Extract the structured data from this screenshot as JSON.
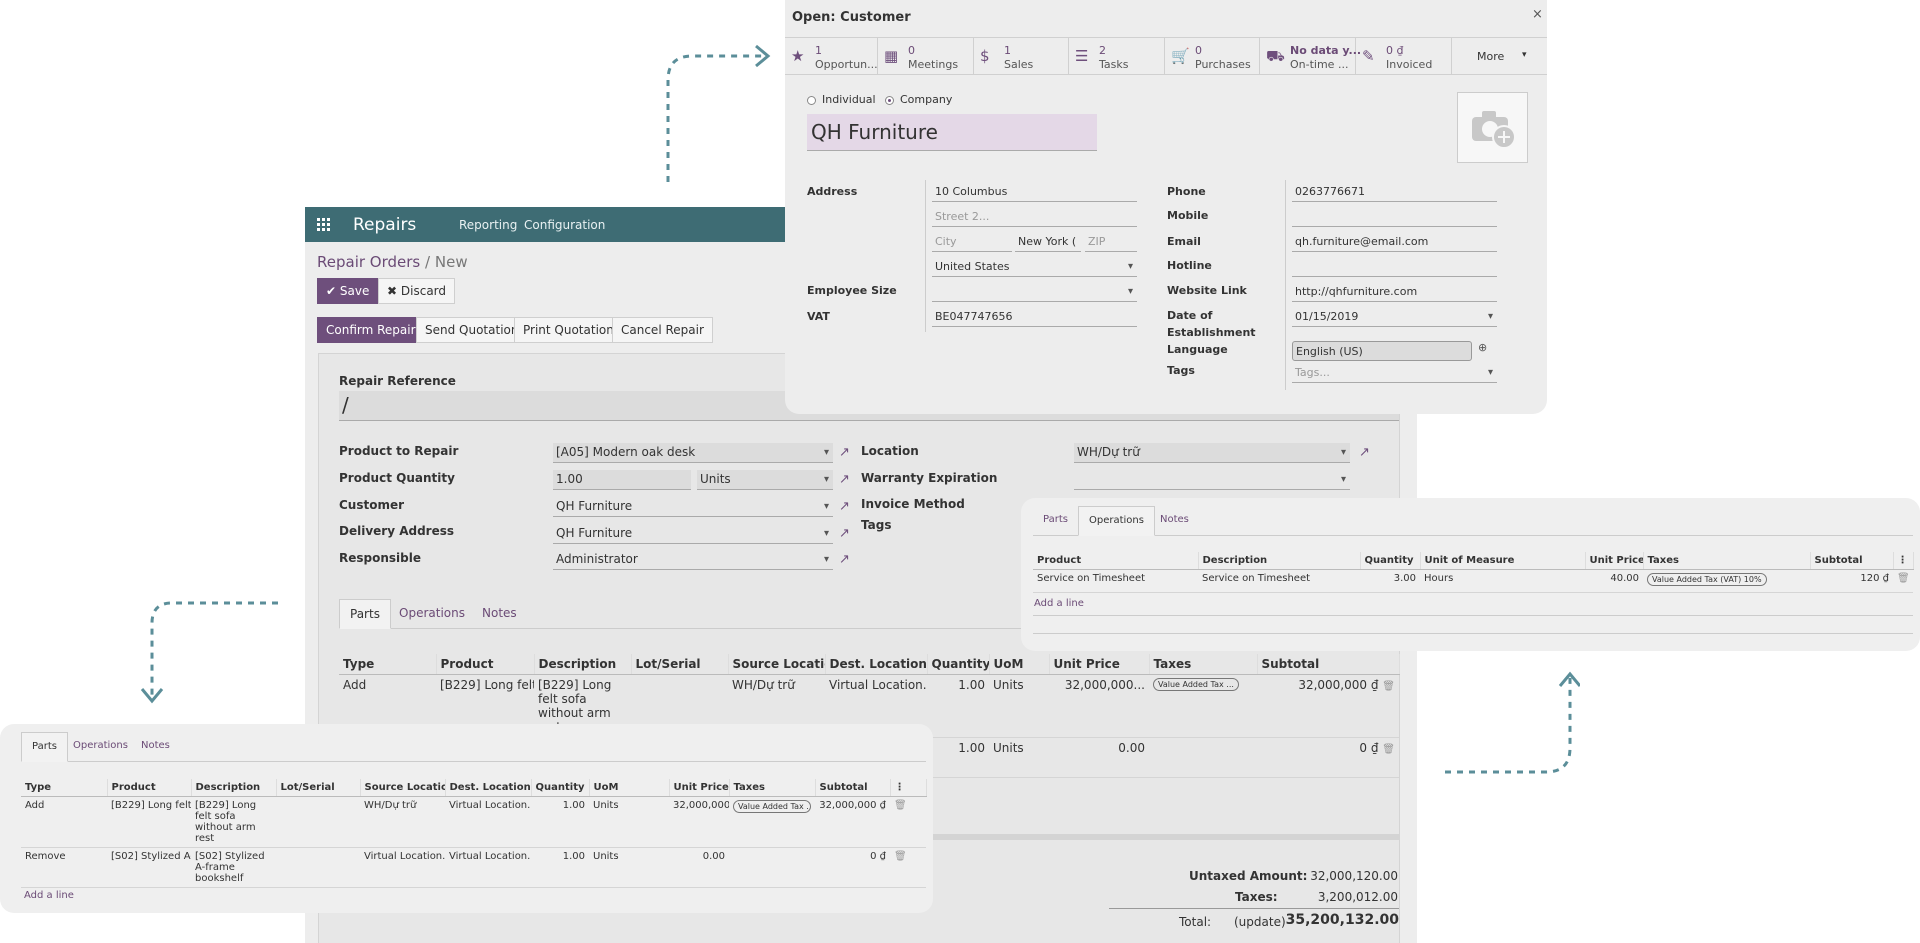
{
  "app": {
    "name": "Repairs",
    "menu": [
      "Reporting",
      "Configuration"
    ]
  },
  "breadcrumb": {
    "parent": "Repair Orders",
    "separator": "/",
    "current": "New"
  },
  "toolbar": {
    "save": "Save",
    "discard": "Discard"
  },
  "actions": [
    "Confirm Repair",
    "Send Quotation",
    "Print Quotation",
    "Cancel Repair"
  ],
  "form": {
    "reference_label": "Repair Reference",
    "reference_value": "/",
    "product_to_repair": {
      "label": "Product to Repair",
      "value": "[A05] Modern oak desk"
    },
    "product_quantity": {
      "label": "Product Quantity",
      "value": "1.00",
      "uom": "Units"
    },
    "customer": {
      "label": "Customer",
      "value": "QH Furniture"
    },
    "delivery_address": {
      "label": "Delivery Address",
      "value": "QH Furniture"
    },
    "responsible": {
      "label": "Responsible",
      "value": "Administrator"
    },
    "location": {
      "label": "Location",
      "value": "WH/Dự trữ"
    },
    "warranty": {
      "label": "Warranty Expiration",
      "value": ""
    },
    "invoice_method": {
      "label": "Invoice Method"
    },
    "tags": {
      "label": "Tags"
    }
  },
  "tabs": [
    "Parts",
    "Operations",
    "Notes"
  ],
  "parts_table": {
    "headers": [
      "Type",
      "Product",
      "Description",
      "Lot/Serial",
      "Source Locatio...",
      "Dest. Location",
      "Quantity",
      "UoM",
      "Unit Price",
      "Taxes",
      "Subtotal"
    ],
    "rows": [
      {
        "type": "Add",
        "product": "[B229] Long felt...",
        "description": "[B229] Long felt sofa without arm rest",
        "lot": "",
        "source": "WH/Dự trữ",
        "dest": "Virtual Location...",
        "qty": "1.00",
        "uom": "Units",
        "price": "32,000,000...",
        "tax": "Value Added Tax ...",
        "subtotal": "32,000,000 ₫"
      },
      {
        "type": "Remove",
        "product": "[S02] Stylized A-...",
        "description": "[S02] Stylized A-frame bookshelf",
        "lot": "",
        "source": "Virtual Location...",
        "dest": "Virtual Location...",
        "qty": "1.00",
        "uom": "Units",
        "price": "0.00",
        "tax": "",
        "subtotal": "0 ₫"
      }
    ],
    "add_line": "Add a line"
  },
  "totals": {
    "untaxed_label": "Untaxed Amount:",
    "untaxed": "32,000,120.00",
    "taxes_label": "Taxes:",
    "taxes": "3,200,012.00",
    "total_label": "Total:",
    "update": "(update)",
    "total": "35,200,132.00"
  },
  "customer_dialog": {
    "title": "Open: Customer",
    "stats": [
      {
        "icon": "star-icon",
        "value": "1",
        "text": "Opportun..."
      },
      {
        "icon": "calendar-icon",
        "value": "0",
        "text": "Meetings"
      },
      {
        "icon": "dollar-icon",
        "value": "1",
        "text": "Sales"
      },
      {
        "icon": "tasks-icon",
        "value": "2",
        "text": "Tasks"
      },
      {
        "icon": "cart-icon",
        "value": "0",
        "text": "Purchases"
      },
      {
        "icon": "truck-icon",
        "value": "No data y...",
        "text": "On-time ..."
      },
      {
        "icon": "invoice-icon",
        "value": "0 ₫",
        "text": "Invoiced"
      }
    ],
    "more": "More",
    "type_individual": "Individual",
    "type_company": "Company",
    "name": "QH Furniture",
    "address_label": "Address",
    "street": "10 Columbus",
    "street2_placeholder": "Street 2...",
    "city_placeholder": "City",
    "state": "New York (",
    "zip_placeholder": "ZIP",
    "country": "United States",
    "employee_size_label": "Employee Size",
    "vat_label": "VAT",
    "vat": "BE047747656",
    "phone_label": "Phone",
    "phone": "0263776671",
    "mobile_label": "Mobile",
    "email_label": "Email",
    "email": "qh.furniture@email.com",
    "hotline_label": "Hotline",
    "website_label": "Website Link",
    "website": "http://qhfurniture.com",
    "date_label_1": "Date of",
    "date_label_2": "Establishment",
    "date": "01/15/2019",
    "language_label": "Language",
    "language": "English (US)",
    "tags_label": "Tags",
    "tags_placeholder": "Tags..."
  },
  "operations_panel": {
    "tabs": [
      "Parts",
      "Operations",
      "Notes"
    ],
    "headers": [
      "Product",
      "Description",
      "Quantity",
      "Unit of Measure",
      "Unit Price",
      "Taxes",
      "Subtotal"
    ],
    "row": {
      "product": "Service on Timesheet",
      "description": "Service on Timesheet",
      "qty": "3.00",
      "uom": "Hours",
      "price": "40.00",
      "tax": "Value Added Tax (VAT) 10%",
      "subtotal": "120 ₫"
    },
    "add_line": "Add a line"
  },
  "parts_panel": {
    "tabs": [
      "Parts",
      "Operations",
      "Notes"
    ],
    "headers": [
      "Type",
      "Product",
      "Description",
      "Lot/Serial",
      "Source Locatio...",
      "Dest. Location",
      "Quantity",
      "UoM",
      "Unit Price",
      "Taxes",
      "Subtotal"
    ],
    "rows": [
      {
        "type": "Add",
        "product": "[B229] Long felt...",
        "description": "[B229] Long felt sofa without arm rest",
        "lot": "",
        "source": "WH/Dự trữ",
        "dest": "Virtual Location...",
        "qty": "1.00",
        "uom": "Units",
        "price": "32,000,000...",
        "tax": "Value Added Tax ...",
        "subtotal": "32,000,000 ₫"
      },
      {
        "type": "Remove",
        "product": "[S02] Stylized A-...",
        "description": "[S02] Stylized A-frame bookshelf",
        "lot": "",
        "source": "Virtual Location...",
        "dest": "Virtual Location...",
        "qty": "1.00",
        "uom": "Units",
        "price": "0.00",
        "tax": "",
        "subtotal": "0 ₫"
      }
    ],
    "add_line": "Add a line"
  },
  "colors": {
    "brand": "#6e4f7c",
    "navbar": "#3e6c74",
    "arrow": "#5b8e99"
  }
}
